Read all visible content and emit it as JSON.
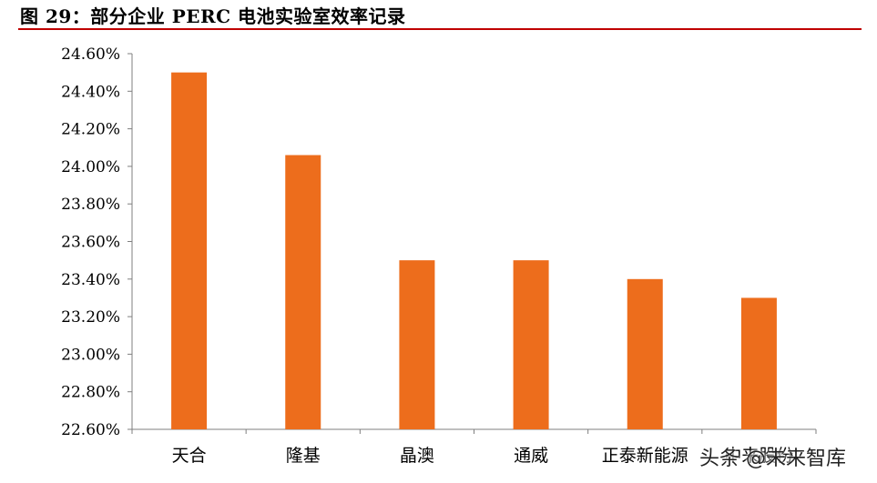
{
  "chart_data": {
    "type": "bar",
    "title": "图 29：部分企业 PERC 电池实验室效率记录",
    "categories": [
      "天合",
      "隆基",
      "晶澳",
      "通威",
      "正泰新能源",
      "中来股份"
    ],
    "values": [
      24.5,
      24.06,
      23.5,
      23.5,
      23.4,
      23.3
    ],
    "y_unit": "%",
    "ylim": [
      22.6,
      24.6
    ],
    "y_ticks": [
      "22.60%",
      "22.80%",
      "23.00%",
      "23.20%",
      "23.40%",
      "23.60%",
      "23.80%",
      "24.00%",
      "24.20%",
      "24.40%",
      "24.60%"
    ],
    "grid": false,
    "legend": "none",
    "bar_color": "#ed6d1c"
  },
  "watermark": "头条 @未来智库"
}
